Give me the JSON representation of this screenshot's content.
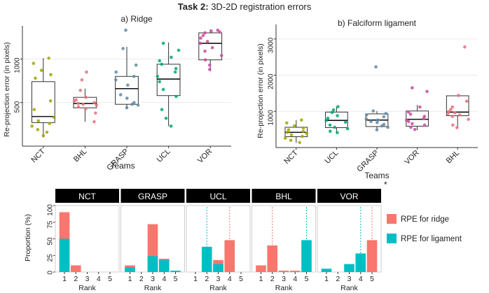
{
  "figure": {
    "title_bold": "Task 2:",
    "title_rest": " 3D-2D registration errors",
    "star": "*"
  },
  "chart_data": [
    {
      "type": "box",
      "title": "a) Ridge",
      "xlabel": "Teams",
      "ylabel": "Re-projection error (in pixels)",
      "categories": [
        "NCT",
        "BHL",
        "GRASP",
        "UCL",
        "VOR"
      ],
      "colors": [
        "#a3a500",
        "#e7707a",
        "#5e8aa6",
        "#00a86b",
        "#c74aa0"
      ],
      "ylim": [
        0,
        1380
      ],
      "yticks": [
        500,
        1000
      ],
      "boxes": [
        {
          "q1": 270,
          "median": 340,
          "q3": 740,
          "lo": 100,
          "hi": 1010
        },
        {
          "q1": 440,
          "median": 490,
          "q3": 560,
          "lo": 280,
          "hi": 660
        },
        {
          "q1": 480,
          "median": 660,
          "q3": 800,
          "lo": 430,
          "hi": 1140
        },
        {
          "q1": 580,
          "median": 770,
          "q3": 940,
          "lo": 230,
          "hi": 1190
        },
        {
          "q1": 990,
          "median": 1180,
          "q3": 1300,
          "lo": 860,
          "hi": 1340
        }
      ],
      "points": [
        [
          1010,
          950,
          870,
          820,
          780,
          520,
          420,
          330,
          290,
          260,
          230,
          190,
          160,
          120
        ],
        [
          850,
          760,
          640,
          560,
          530,
          520,
          500,
          490,
          480,
          470,
          450,
          430,
          380,
          280
        ],
        [
          1330,
          1120,
          930,
          850,
          800,
          760,
          700,
          590,
          550,
          500,
          480,
          470,
          440
        ],
        [
          1180,
          1100,
          1020,
          980,
          940,
          890,
          850,
          800,
          740,
          650,
          570,
          420,
          320,
          230
        ],
        [
          1330,
          1320,
          1310,
          1300,
          1270,
          1240,
          1200,
          1180,
          1130,
          1090,
          1040,
          990,
          930,
          880
        ]
      ]
    },
    {
      "type": "box",
      "title": "b) Falciform ligament",
      "xlabel": "Teams",
      "ylabel": "Re-projection error (in pixels)",
      "categories": [
        "NCT",
        "UCL",
        "GRASP",
        "VOR",
        "BHL"
      ],
      "colors": [
        "#a3a500",
        "#00a86b",
        "#5e8aa6",
        "#c74aa0",
        "#e7707a"
      ],
      "ylim": [
        0,
        3400
      ],
      "yticks": [
        1000,
        2000,
        3000
      ],
      "boxes": [
        {
          "q1": 300,
          "median": 420,
          "q3": 560,
          "lo": 130,
          "hi": 760
        },
        {
          "q1": 550,
          "median": 750,
          "q3": 980,
          "lo": 400,
          "hi": 1130
        },
        {
          "q1": 580,
          "median": 760,
          "q3": 930,
          "lo": 480,
          "hi": 1010
        },
        {
          "q1": 590,
          "median": 780,
          "q3": 1010,
          "lo": 480,
          "hi": 1180
        },
        {
          "q1": 880,
          "median": 980,
          "q3": 1430,
          "lo": 540,
          "hi": 1430
        }
      ],
      "points": [
        [
          760,
          680,
          600,
          540,
          490,
          450,
          420,
          390,
          350,
          310,
          260,
          200,
          140
        ],
        [
          1130,
          1040,
          970,
          880,
          810,
          750,
          700,
          620,
          560,
          520,
          450,
          410
        ],
        [
          2230,
          1010,
          940,
          900,
          850,
          790,
          760,
          720,
          690,
          640,
          600,
          560,
          490
        ],
        [
          1650,
          1550,
          1120,
          980,
          920,
          860,
          800,
          760,
          720,
          660,
          620,
          560,
          500
        ],
        [
          2780,
          1440,
          1280,
          1120,
          1050,
          990,
          960,
          940,
          900,
          860,
          780,
          620,
          550
        ]
      ]
    },
    {
      "type": "bar",
      "ylabel": "Proportion (%)",
      "xlabel": "Rank",
      "ylim": [
        0,
        100
      ],
      "yticks": [
        0,
        25,
        50,
        75,
        100
      ],
      "rank_labels": [
        "1",
        "2",
        "3",
        "4",
        "5"
      ],
      "legend": {
        "items": [
          {
            "name": "RPE for ridge",
            "color": "#f8766d"
          },
          {
            "name": "RPE for ligament",
            "color": "#00bfc4"
          }
        ]
      },
      "panels": [
        {
          "team": "NCT",
          "ridge": [
            90,
            10,
            0,
            0,
            0
          ],
          "ligament": [
            50,
            0,
            0,
            0,
            0
          ],
          "ridge_mean_rank": null,
          "ligament_mean_rank": null
        },
        {
          "team": "GRASP",
          "ridge": [
            10,
            0,
            72,
            20,
            0
          ],
          "ligament": [
            7,
            0,
            24,
            18,
            2
          ],
          "ridge_mean_rank": null,
          "ligament_mean_rank": null
        },
        {
          "team": "UCL",
          "ridge": [
            0,
            0,
            18,
            48,
            0
          ],
          "ligament": [
            0,
            38,
            12,
            0,
            0
          ],
          "ridge_mean_rank": 4,
          "ligament_mean_rank": 2
        },
        {
          "team": "BHL",
          "ridge": [
            10,
            40,
            2,
            2,
            0
          ],
          "ligament": [
            0,
            0,
            0,
            0,
            48
          ],
          "ridge_mean_rank": 2,
          "ligament_mean_rank": 5
        },
        {
          "team": "VOR",
          "ridge": [
            0,
            0,
            0,
            0,
            48
          ],
          "ligament": [
            5,
            0,
            12,
            28,
            0
          ],
          "ridge_mean_rank": 5,
          "ligament_mean_rank": 4
        }
      ]
    }
  ]
}
